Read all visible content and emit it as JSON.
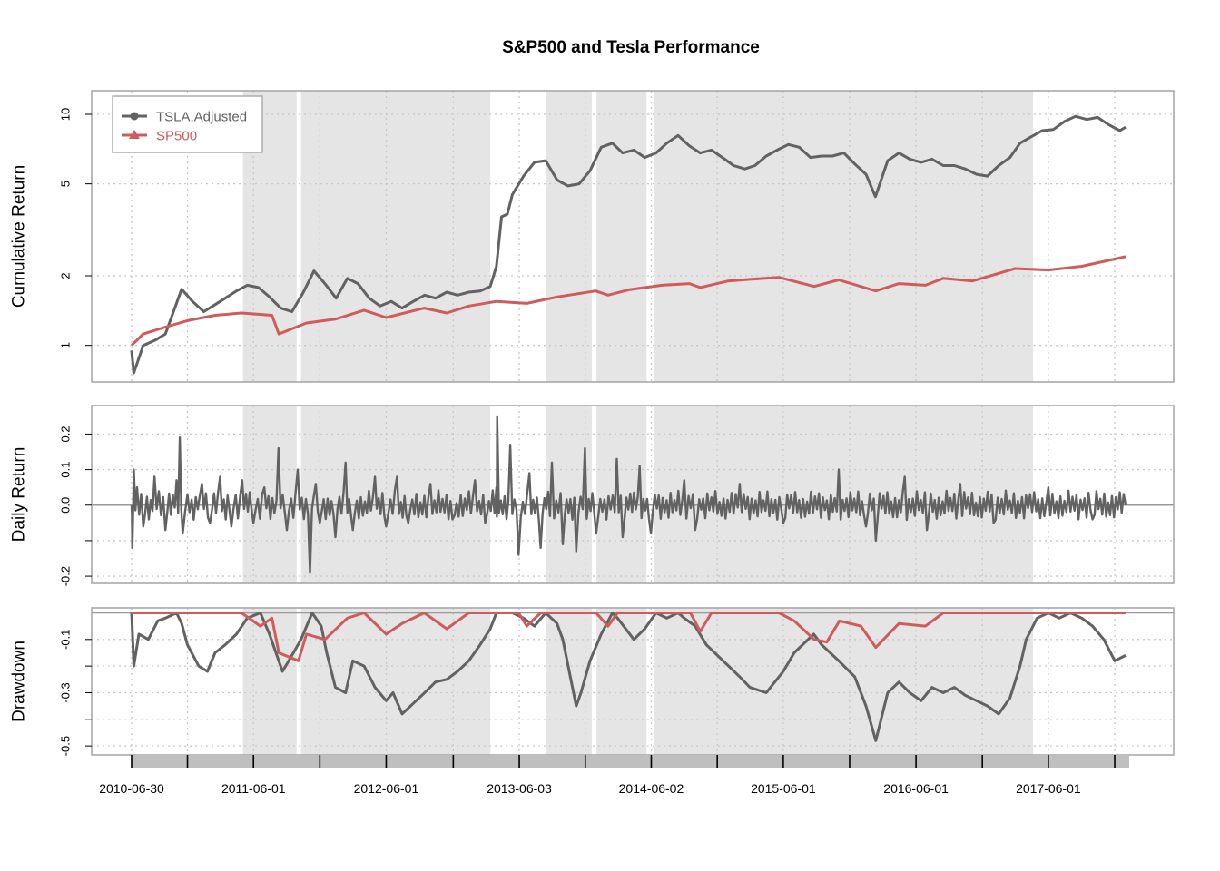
{
  "chart_data": {
    "type": "line",
    "title": "S&P500 and Tesla Performance",
    "colors": {
      "tsla": "#626262",
      "sp500": "#d05b5b",
      "shade": "#e5e5e5",
      "grid": "#c8c8c8",
      "frame": "#a9a9a9",
      "xbar": "#bfbfbf"
    },
    "x_range": [
      "2010-06-30",
      "2017-12-31"
    ],
    "x_tick_labels": [
      "2010-06-30",
      "2011-06-01",
      "2012-06-01",
      "2013-06-03",
      "2014-06-02",
      "2015-06-01",
      "2016-06-01",
      "2017-06-01"
    ],
    "x_tick_dates": [
      "2010-06-30",
      "2010-12-01",
      "2011-06-01",
      "2011-12-01",
      "2012-06-01",
      "2012-12-03",
      "2013-06-03",
      "2013-12-02",
      "2014-06-02",
      "2014-12-01",
      "2015-06-01",
      "2015-12-01",
      "2016-06-01",
      "2016-12-01",
      "2017-06-01",
      "2017-12-01"
    ],
    "shaded_periods": [
      [
        "2011-05-03",
        "2011-09-28"
      ],
      [
        "2011-10-10",
        "2013-03-15"
      ],
      [
        "2013-08-15",
        "2013-12-20"
      ],
      [
        "2014-01-02",
        "2014-05-20"
      ],
      [
        "2014-06-10",
        "2017-04-20"
      ]
    ],
    "legend": {
      "position": "top-left",
      "entries": [
        "TSLA.Adjusted",
        "SP500"
      ]
    },
    "panels": [
      {
        "name": "cumulative",
        "ylabel": "Cumulative Return",
        "scale": "log",
        "ylim": [
          0.72,
          12.2
        ],
        "ticks": [
          1,
          2,
          5,
          10
        ],
        "tick_labels": [
          "1",
          "2",
          "5",
          "10"
        ],
        "grid_y": [
          1,
          2,
          5,
          10
        ],
        "series": [
          {
            "name": "TSLA.Adjusted",
            "x": [
              "2010-06-30",
              "2010-07-06",
              "2010-08-01",
              "2010-09-01",
              "2010-10-01",
              "2010-11-15",
              "2010-12-15",
              "2011-01-15",
              "2011-02-15",
              "2011-03-15",
              "2011-04-15",
              "2011-05-15",
              "2011-06-15",
              "2011-07-15",
              "2011-08-15",
              "2011-09-15",
              "2011-10-15",
              "2011-11-15",
              "2011-12-15",
              "2012-01-15",
              "2012-02-15",
              "2012-03-15",
              "2012-04-15",
              "2012-05-15",
              "2012-06-15",
              "2012-07-15",
              "2012-08-15",
              "2012-09-15",
              "2012-10-15",
              "2012-11-15",
              "2012-12-15",
              "2013-01-15",
              "2013-02-15",
              "2013-03-15",
              "2013-04-01",
              "2013-04-15",
              "2013-05-01",
              "2013-05-15",
              "2013-06-15",
              "2013-07-15",
              "2013-08-15",
              "2013-09-15",
              "2013-10-15",
              "2013-11-15",
              "2013-12-15",
              "2014-01-15",
              "2014-02-15",
              "2014-03-15",
              "2014-04-15",
              "2014-05-15",
              "2014-06-15",
              "2014-07-15",
              "2014-08-15",
              "2014-09-15",
              "2014-10-15",
              "2014-11-15",
              "2014-12-15",
              "2015-01-15",
              "2015-02-15",
              "2015-03-15",
              "2015-04-15",
              "2015-05-15",
              "2015-06-15",
              "2015-07-15",
              "2015-08-15",
              "2015-09-15",
              "2015-10-15",
              "2015-11-15",
              "2015-12-15",
              "2016-01-15",
              "2016-02-10",
              "2016-03-15",
              "2016-04-15",
              "2016-05-15",
              "2016-06-15",
              "2016-07-15",
              "2016-08-15",
              "2016-09-15",
              "2016-10-15",
              "2016-11-15",
              "2016-12-15",
              "2017-01-15",
              "2017-02-15",
              "2017-03-15",
              "2017-04-15",
              "2017-05-15",
              "2017-06-15",
              "2017-07-15",
              "2017-08-15",
              "2017-09-15",
              "2017-10-15",
              "2017-11-15",
              "2017-12-15",
              "2017-12-31"
            ],
            "y": [
              0.95,
              0.76,
              1.0,
              1.05,
              1.12,
              1.75,
              1.55,
              1.4,
              1.5,
              1.6,
              1.72,
              1.82,
              1.78,
              1.62,
              1.45,
              1.4,
              1.68,
              2.1,
              1.85,
              1.6,
              1.95,
              1.85,
              1.6,
              1.48,
              1.55,
              1.45,
              1.55,
              1.65,
              1.6,
              1.7,
              1.65,
              1.7,
              1.72,
              1.8,
              2.2,
              3.6,
              3.7,
              4.5,
              5.4,
              6.2,
              6.3,
              5.2,
              4.9,
              5.0,
              5.7,
              7.2,
              7.5,
              6.8,
              7.0,
              6.5,
              6.8,
              7.5,
              8.1,
              7.3,
              6.8,
              7.0,
              6.5,
              6.0,
              5.8,
              6.0,
              6.6,
              7.0,
              7.4,
              7.2,
              6.5,
              6.6,
              6.6,
              6.8,
              6.1,
              5.5,
              4.4,
              6.3,
              6.8,
              6.4,
              6.2,
              6.4,
              6.0,
              6.0,
              5.8,
              5.5,
              5.4,
              6.0,
              6.5,
              7.5,
              8.0,
              8.5,
              8.6,
              9.3,
              9.8,
              9.5,
              9.7,
              9.0,
              8.5,
              8.8
            ]
          },
          {
            "name": "SP500",
            "x": [
              "2010-06-30",
              "2010-08-01",
              "2010-10-01",
              "2010-12-01",
              "2011-02-15",
              "2011-04-29",
              "2011-07-22",
              "2011-08-10",
              "2011-09-15",
              "2011-10-25",
              "2012-01-15",
              "2012-04-01",
              "2012-06-01",
              "2012-09-14",
              "2012-11-15",
              "2013-01-15",
              "2013-04-01",
              "2013-06-24",
              "2013-09-15",
              "2013-12-31",
              "2014-02-03",
              "2014-04-01",
              "2014-07-01",
              "2014-09-15",
              "2014-10-15",
              "2014-12-31",
              "2015-03-01",
              "2015-05-20",
              "2015-08-25",
              "2015-11-01",
              "2016-02-11",
              "2016-04-15",
              "2016-06-27",
              "2016-08-15",
              "2016-11-04",
              "2017-01-15",
              "2017-03-01",
              "2017-06-01",
              "2017-09-01",
              "2017-12-31"
            ],
            "y": [
              1.0,
              1.12,
              1.2,
              1.28,
              1.35,
              1.38,
              1.35,
              1.12,
              1.18,
              1.25,
              1.3,
              1.42,
              1.32,
              1.45,
              1.38,
              1.48,
              1.55,
              1.52,
              1.62,
              1.72,
              1.65,
              1.74,
              1.82,
              1.85,
              1.78,
              1.9,
              1.93,
              1.97,
              1.8,
              1.92,
              1.72,
              1.85,
              1.82,
              1.95,
              1.9,
              2.05,
              2.15,
              2.12,
              2.2,
              2.42
            ]
          }
        ]
      },
      {
        "name": "daily",
        "ylabel": "Daily Return",
        "scale": "linear",
        "ylim": [
          -0.21,
          0.27
        ],
        "ticks": [
          -0.2,
          -0.1,
          0.0,
          0.1,
          0.2
        ],
        "tick_labels": [
          "-0.2",
          "",
          "0.0",
          "0.1",
          "0.2"
        ],
        "grid_y": [
          -0.2,
          -0.1,
          0.0,
          0.1,
          0.2
        ],
        "zero_line": 0,
        "series": [
          {
            "name": "TSLA.Adjusted",
            "x": [
              "2010-06-30",
              "2010-07-02",
              "2010-07-06",
              "2010-07-15",
              "2010-08-01",
              "2010-09-01",
              "2010-10-01",
              "2010-11-01",
              "2010-11-10",
              "2010-11-18",
              "2010-12-01",
              "2011-01-10",
              "2011-02-01",
              "2011-03-01",
              "2011-04-01",
              "2011-05-01",
              "2011-06-01",
              "2011-07-01",
              "2011-08-09",
              "2011-09-01",
              "2011-10-01",
              "2011-11-04",
              "2011-11-20",
              "2011-12-01",
              "2012-01-13",
              "2012-02-10",
              "2012-03-01",
              "2012-05-01",
              "2012-06-01",
              "2012-07-01",
              "2012-08-01",
              "2012-10-01",
              "2012-12-01",
              "2013-02-01",
              "2013-03-01",
              "2013-04-01",
              "2013-04-03",
              "2013-05-09",
              "2013-06-01",
              "2013-07-01",
              "2013-08-01",
              "2013-09-01",
              "2013-10-01",
              "2013-11-07",
              "2013-12-01",
              "2014-01-01",
              "2014-02-27",
              "2014-03-15",
              "2014-05-01",
              "2014-06-01",
              "2014-09-01",
              "2014-10-01",
              "2015-02-01",
              "2015-06-01",
              "2015-11-01",
              "2016-01-15",
              "2016-02-11",
              "2016-05-01",
              "2016-07-01",
              "2016-10-01",
              "2017-01-01",
              "2017-06-01",
              "2017-10-01",
              "2017-12-31"
            ],
            "y": [
              0.0,
              -0.12,
              0.1,
              0.05,
              -0.06,
              0.08,
              -0.07,
              0.07,
              0.19,
              -0.08,
              0.03,
              0.06,
              -0.05,
              0.08,
              -0.06,
              0.07,
              -0.05,
              0.05,
              0.16,
              -0.07,
              0.1,
              -0.19,
              0.06,
              -0.05,
              -0.09,
              0.12,
              -0.07,
              0.08,
              -0.06,
              0.08,
              -0.05,
              0.06,
              -0.04,
              0.07,
              -0.05,
              0.05,
              0.25,
              0.17,
              -0.14,
              0.09,
              -0.12,
              0.12,
              -0.11,
              -0.13,
              0.16,
              -0.08,
              0.13,
              -0.09,
              0.11,
              -0.08,
              0.07,
              -0.07,
              0.06,
              -0.05,
              0.1,
              -0.06,
              -0.1,
              0.08,
              -0.07,
              0.06,
              -0.05,
              0.05,
              -0.04,
              0.0
            ]
          }
        ]
      },
      {
        "name": "drawdown",
        "ylabel": "Drawdown",
        "scale": "linear",
        "ylim": [
          -0.52,
          0.005
        ],
        "ticks": [
          -0.5,
          -0.4,
          -0.3,
          -0.2,
          -0.1
        ],
        "tick_labels": [
          "-0.5",
          "",
          "-0.3",
          "",
          "-0.1"
        ],
        "grid_y": [
          -0.5,
          -0.4,
          -0.3,
          -0.2,
          -0.1,
          0.0
        ],
        "zero_line": 0,
        "series": [
          {
            "name": "TSLA.Adjusted",
            "x": [
              "2010-06-30",
              "2010-07-06",
              "2010-07-20",
              "2010-08-15",
              "2010-09-10",
              "2010-10-01",
              "2010-11-01",
              "2010-11-15",
              "2010-12-01",
              "2011-01-01",
              "2011-01-25",
              "2011-02-15",
              "2011-03-15",
              "2011-04-15",
              "2011-05-15",
              "2011-06-20",
              "2011-07-15",
              "2011-08-20",
              "2011-09-15",
              "2011-10-10",
              "2011-11-10",
              "2011-12-05",
              "2011-12-20",
              "2012-01-13",
              "2012-02-10",
              "2012-03-01",
              "2012-04-01",
              "2012-05-01",
              "2012-06-01",
              "2012-06-20",
              "2012-07-15",
              "2012-08-15",
              "2012-09-15",
              "2012-10-15",
              "2012-11-15",
              "2012-12-15",
              "2013-01-15",
              "2013-02-15",
              "2013-03-15",
              "2013-04-01",
              "2013-05-15",
              "2013-06-15",
              "2013-07-15",
              "2013-08-15",
              "2013-09-15",
              "2013-10-01",
              "2013-11-07",
              "2013-11-20",
              "2013-12-15",
              "2014-01-15",
              "2014-02-15",
              "2014-03-01",
              "2014-04-15",
              "2014-05-15",
              "2014-06-15",
              "2014-07-15",
              "2014-08-15",
              "2014-09-01",
              "2014-10-01",
              "2014-11-01",
              "2015-01-01",
              "2015-02-01",
              "2015-03-01",
              "2015-04-15",
              "2015-06-01",
              "2015-07-01",
              "2015-08-24",
              "2015-09-15",
              "2015-11-01",
              "2015-12-15",
              "2016-01-15",
              "2016-02-11",
              "2016-03-15",
              "2016-04-15",
              "2016-05-15",
              "2016-06-15",
              "2016-07-15",
              "2016-08-15",
              "2016-09-15",
              "2016-10-15",
              "2016-11-15",
              "2016-12-15",
              "2017-01-15",
              "2017-02-15",
              "2017-03-15",
              "2017-04-01",
              "2017-05-01",
              "2017-06-01",
              "2017-07-01",
              "2017-08-01",
              "2017-09-01",
              "2017-10-01",
              "2017-11-01",
              "2017-12-01",
              "2017-12-31"
            ],
            "y": [
              0.0,
              -0.2,
              -0.08,
              -0.1,
              -0.03,
              -0.02,
              0.0,
              -0.04,
              -0.12,
              -0.2,
              -0.22,
              -0.15,
              -0.12,
              -0.08,
              -0.02,
              0.0,
              -0.08,
              -0.22,
              -0.16,
              -0.1,
              0.0,
              -0.05,
              -0.15,
              -0.28,
              -0.3,
              -0.18,
              -0.2,
              -0.28,
              -0.33,
              -0.3,
              -0.38,
              -0.34,
              -0.3,
              -0.26,
              -0.25,
              -0.22,
              -0.18,
              -0.12,
              -0.06,
              0.0,
              0.0,
              -0.02,
              -0.05,
              0.0,
              -0.04,
              -0.1,
              -0.35,
              -0.3,
              -0.18,
              -0.08,
              0.0,
              -0.02,
              -0.1,
              -0.06,
              0.0,
              -0.02,
              0.0,
              -0.02,
              -0.05,
              -0.12,
              -0.2,
              -0.24,
              -0.28,
              -0.3,
              -0.22,
              -0.15,
              -0.08,
              -0.12,
              -0.18,
              -0.24,
              -0.35,
              -0.48,
              -0.3,
              -0.26,
              -0.3,
              -0.33,
              -0.28,
              -0.3,
              -0.28,
              -0.31,
              -0.33,
              -0.35,
              -0.38,
              -0.32,
              -0.2,
              -0.1,
              -0.02,
              0.0,
              -0.02,
              0.0,
              -0.02,
              -0.05,
              -0.1,
              -0.18,
              -0.16
            ]
          },
          {
            "name": "SP500",
            "x": [
              "2010-06-30",
              "2010-09-01",
              "2010-11-15",
              "2011-02-01",
              "2011-04-29",
              "2011-06-20",
              "2011-07-22",
              "2011-08-10",
              "2011-10-03",
              "2011-10-25",
              "2011-12-15",
              "2012-02-15",
              "2012-04-01",
              "2012-06-01",
              "2012-07-15",
              "2012-09-14",
              "2012-11-15",
              "2013-01-15",
              "2013-06-01",
              "2013-06-24",
              "2013-08-01",
              "2014-01-01",
              "2014-02-03",
              "2014-03-01",
              "2014-09-18",
              "2014-10-15",
              "2014-11-15",
              "2015-05-20",
              "2015-07-01",
              "2015-08-25",
              "2015-09-29",
              "2015-11-03",
              "2016-01-01",
              "2016-02-11",
              "2016-04-15",
              "2016-06-27",
              "2016-08-15",
              "2017-01-01",
              "2017-12-31"
            ],
            "y": [
              0.0,
              0.0,
              0.0,
              0.0,
              0.0,
              -0.05,
              -0.02,
              -0.15,
              -0.18,
              -0.08,
              -0.1,
              -0.02,
              0.0,
              -0.08,
              -0.04,
              0.0,
              -0.06,
              0.0,
              0.0,
              -0.05,
              0.0,
              0.0,
              -0.05,
              0.0,
              0.0,
              -0.07,
              0.0,
              0.0,
              -0.03,
              -0.1,
              -0.11,
              -0.03,
              -0.05,
              -0.13,
              -0.04,
              -0.05,
              0.0,
              0.0,
              0.0
            ]
          }
        ]
      }
    ]
  }
}
